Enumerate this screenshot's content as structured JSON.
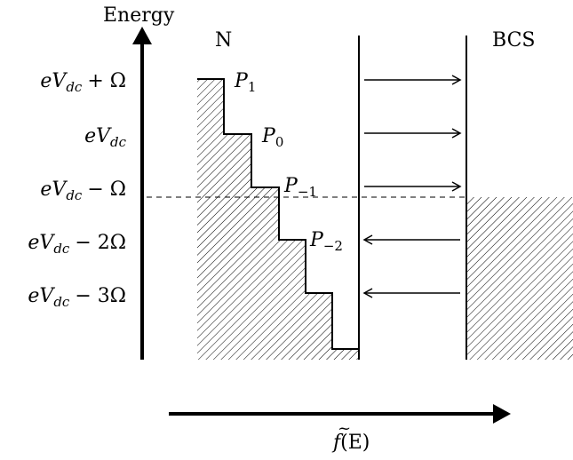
{
  "axes": {
    "energy_label": "Energy",
    "x_label_f": "f",
    "x_label_tilde": "~",
    "x_label_arg": "(E)"
  },
  "regions": {
    "left_label": "N",
    "right_label": "BCS"
  },
  "energy_levels": [
    {
      "base": "eV",
      "sub": "dc",
      "suffix": "+ Ω"
    },
    {
      "base": "eV",
      "sub": "dc",
      "suffix": ""
    },
    {
      "base": "eV",
      "sub": "dc",
      "suffix": "− Ω"
    },
    {
      "base": "eV",
      "sub": "dc",
      "suffix": "− 2Ω"
    },
    {
      "base": "eV",
      "sub": "dc",
      "suffix": "− 3Ω"
    }
  ],
  "step_labels": [
    {
      "base": "P",
      "sub": "1"
    },
    {
      "base": "P",
      "sub": "0"
    },
    {
      "base": "P",
      "sub": "−1"
    },
    {
      "base": "P",
      "sub": "−2"
    }
  ],
  "arrows": [
    {
      "direction": "right"
    },
    {
      "direction": "right"
    },
    {
      "direction": "right"
    },
    {
      "direction": "left"
    },
    {
      "direction": "left"
    }
  ]
}
